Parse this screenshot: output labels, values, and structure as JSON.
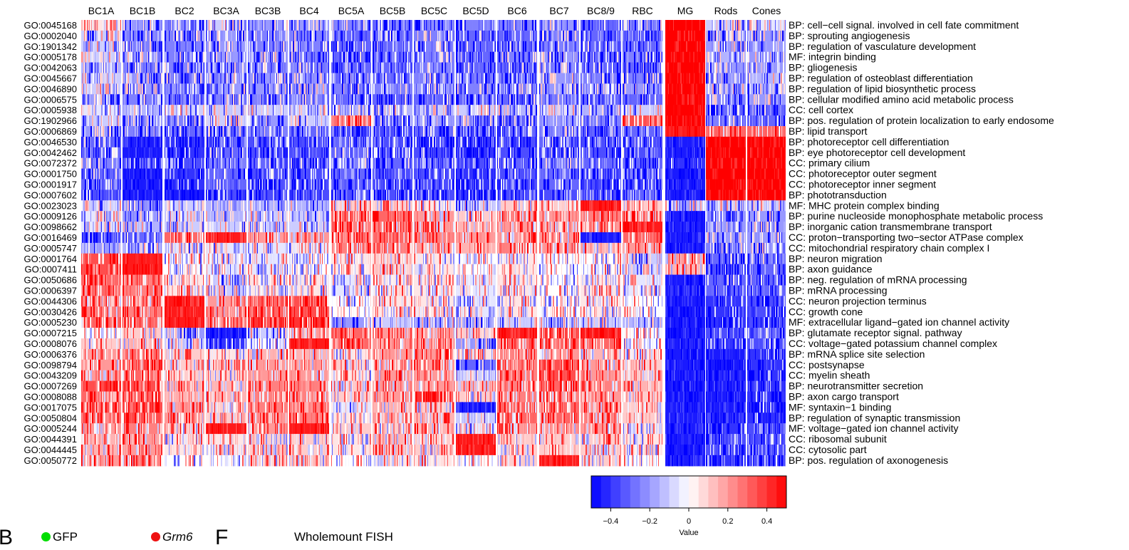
{
  "chart_data": {
    "type": "heatmap",
    "columns": [
      "BC1A",
      "BC1B",
      "BC2",
      "BC3A",
      "BC3B",
      "BC4",
      "BC5A",
      "BC5B",
      "BC5C",
      "BC5D",
      "BC6",
      "BC7",
      "BC8/9",
      "RBC",
      "MG",
      "Rods",
      "Cones"
    ],
    "rows": [
      {
        "id": "GO:0045168",
        "desc": "BP: cell−cell signal. involved in cell fate commitment"
      },
      {
        "id": "GO:0002040",
        "desc": "BP: sprouting angiogenesis"
      },
      {
        "id": "GO:1901342",
        "desc": "BP: regulation of vasculature development"
      },
      {
        "id": "GO:0005178",
        "desc": "MF: integrin binding"
      },
      {
        "id": "GO:0042063",
        "desc": "BP: gliogenesis"
      },
      {
        "id": "GO:0045667",
        "desc": "BP: regulation of osteoblast differentiation"
      },
      {
        "id": "GO:0046890",
        "desc": "BP: regulation of lipid biosynthetic process"
      },
      {
        "id": "GO:0006575",
        "desc": "BP: cellular modified amino acid metabolic process"
      },
      {
        "id": "GO:0005938",
        "desc": "CC: cell cortex"
      },
      {
        "id": "GO:1902966",
        "desc": "BP: pos. regulation of protein localization to early endosome"
      },
      {
        "id": "GO:0006869",
        "desc": "BP: lipid transport"
      },
      {
        "id": "GO:0046530",
        "desc": "BP: photoreceptor cell differentiation"
      },
      {
        "id": "GO:0042462",
        "desc": "BP: eye photoreceptor cell development"
      },
      {
        "id": "GO:0072372",
        "desc": "CC: primary cilium"
      },
      {
        "id": "GO:0001750",
        "desc": "CC: photoreceptor outer segment"
      },
      {
        "id": "GO:0001917",
        "desc": "CC: photoreceptor inner segment"
      },
      {
        "id": "GO:0007602",
        "desc": "BP: phototransduction"
      },
      {
        "id": "GO:0023023",
        "desc": "MF: MHC protein complex binding"
      },
      {
        "id": "GO:0009126",
        "desc": "BP: purine nucleoside monophosphate metabolic process"
      },
      {
        "id": "GO:0098662",
        "desc": "BP: inorganic cation transmembrane transport"
      },
      {
        "id": "GO:0016469",
        "desc": "CC: proton−transporting two−sector ATPase complex"
      },
      {
        "id": "GO:0005747",
        "desc": "CC: mitochondrial respiratory chain complex I"
      },
      {
        "id": "GO:0001764",
        "desc": "BP: neuron migration"
      },
      {
        "id": "GO:0007411",
        "desc": "BP: axon guidance"
      },
      {
        "id": "GO:0050686",
        "desc": "BP: neg. regulation of mRNA processing"
      },
      {
        "id": "GO:0006397",
        "desc": "BP: mRNA processing"
      },
      {
        "id": "GO:0044306",
        "desc": "CC: neuron projection terminus"
      },
      {
        "id": "GO:0030426",
        "desc": "CC: growth cone"
      },
      {
        "id": "GO:0005230",
        "desc": "MF: extracellular ligand−gated ion channel activity"
      },
      {
        "id": "GO:0007215",
        "desc": "BP: glutamate receptor signal. pathway"
      },
      {
        "id": "GO:0008076",
        "desc": "CC: voltage−gated potassium channel complex"
      },
      {
        "id": "GO:0006376",
        "desc": "BP: mRNA splice site selection"
      },
      {
        "id": "GO:0098794",
        "desc": "CC: postsynapse"
      },
      {
        "id": "GO:0043209",
        "desc": "CC: myelin sheath"
      },
      {
        "id": "GO:0007269",
        "desc": "BP: neurotransmitter secretion"
      },
      {
        "id": "GO:0008088",
        "desc": "BP: axon cargo transport"
      },
      {
        "id": "GO:0017075",
        "desc": "MF: syntaxin−1 binding"
      },
      {
        "id": "GO:0050804",
        "desc": "BP: regulation of synaptic transmission"
      },
      {
        "id": "GO:0005244",
        "desc": "MF: voltage−gated ion channel activity"
      },
      {
        "id": "GO:0044391",
        "desc": "CC: ribosomal subunit"
      },
      {
        "id": "GO:0044445",
        "desc": "CC: cytosolic part"
      },
      {
        "id": "GO:0050772",
        "desc": "BP: pos. regulation of axonogenesis"
      }
    ],
    "values": [
      [
        0.05,
        -0.2,
        -0.25,
        -0.1,
        -0.2,
        -0.2,
        -0.25,
        -0.3,
        -0.25,
        -0.25,
        -0.25,
        -0.2,
        -0.3,
        -0.25,
        0.5,
        -0.1,
        -0.05
      ],
      [
        -0.1,
        -0.25,
        -0.25,
        -0.2,
        -0.25,
        -0.25,
        -0.3,
        -0.3,
        -0.25,
        -0.3,
        -0.3,
        -0.25,
        -0.3,
        -0.3,
        0.5,
        -0.2,
        -0.2
      ],
      [
        -0.1,
        -0.25,
        -0.25,
        -0.2,
        -0.25,
        -0.25,
        -0.3,
        -0.3,
        -0.25,
        -0.3,
        -0.3,
        -0.25,
        -0.3,
        -0.3,
        0.5,
        -0.2,
        -0.2
      ],
      [
        -0.1,
        -0.2,
        -0.25,
        -0.2,
        -0.2,
        -0.25,
        -0.3,
        -0.3,
        -0.25,
        -0.3,
        -0.25,
        -0.2,
        -0.3,
        -0.25,
        0.5,
        -0.15,
        -0.2
      ],
      [
        -0.15,
        -0.25,
        -0.25,
        -0.2,
        -0.25,
        -0.25,
        -0.3,
        -0.3,
        -0.25,
        -0.3,
        -0.3,
        -0.25,
        -0.3,
        -0.3,
        0.5,
        -0.2,
        -0.2
      ],
      [
        -0.1,
        -0.2,
        -0.25,
        -0.2,
        -0.2,
        -0.2,
        -0.3,
        -0.3,
        -0.25,
        -0.25,
        -0.25,
        -0.2,
        -0.25,
        -0.25,
        0.5,
        -0.2,
        -0.15
      ],
      [
        -0.1,
        -0.2,
        -0.2,
        -0.2,
        -0.2,
        -0.2,
        -0.25,
        -0.25,
        -0.2,
        -0.25,
        -0.25,
        -0.2,
        -0.25,
        -0.2,
        0.5,
        -0.15,
        -0.15
      ],
      [
        -0.2,
        -0.25,
        -0.3,
        -0.25,
        -0.25,
        -0.25,
        -0.3,
        -0.3,
        -0.3,
        -0.3,
        -0.3,
        -0.25,
        -0.3,
        -0.3,
        0.5,
        -0.25,
        -0.2
      ],
      [
        -0.05,
        -0.15,
        -0.1,
        -0.1,
        -0.1,
        -0.1,
        -0.15,
        -0.15,
        -0.1,
        -0.1,
        -0.15,
        -0.1,
        -0.15,
        -0.1,
        0.5,
        -0.3,
        -0.3
      ],
      [
        -0.1,
        -0.2,
        -0.25,
        -0.1,
        -0.2,
        -0.1,
        0.3,
        -0.3,
        -0.2,
        -0.2,
        -0.3,
        -0.2,
        -0.25,
        0.35,
        0.5,
        -0.25,
        -0.3
      ],
      [
        -0.2,
        -0.25,
        -0.3,
        -0.25,
        -0.25,
        -0.3,
        -0.35,
        -0.35,
        -0.3,
        -0.3,
        -0.3,
        -0.25,
        -0.3,
        -0.3,
        0.45,
        0.3,
        0.3
      ],
      [
        -0.3,
        -0.45,
        -0.4,
        -0.3,
        -0.35,
        -0.35,
        -0.3,
        -0.35,
        -0.35,
        -0.4,
        -0.35,
        -0.3,
        -0.35,
        -0.35,
        -0.45,
        0.5,
        0.5
      ],
      [
        -0.3,
        -0.45,
        -0.4,
        -0.3,
        -0.35,
        -0.35,
        -0.3,
        -0.35,
        -0.35,
        -0.4,
        -0.35,
        -0.3,
        -0.35,
        -0.35,
        -0.45,
        0.5,
        0.5
      ],
      [
        -0.25,
        -0.4,
        -0.35,
        -0.25,
        -0.3,
        -0.3,
        -0.25,
        -0.3,
        -0.3,
        -0.35,
        -0.3,
        -0.25,
        -0.3,
        -0.3,
        -0.4,
        0.5,
        0.5
      ],
      [
        -0.3,
        -0.45,
        -0.4,
        -0.3,
        -0.35,
        -0.35,
        -0.3,
        -0.35,
        -0.35,
        -0.4,
        -0.35,
        -0.3,
        -0.35,
        -0.35,
        -0.45,
        0.5,
        0.5
      ],
      [
        -0.3,
        -0.45,
        -0.4,
        -0.3,
        -0.35,
        -0.35,
        -0.3,
        -0.35,
        -0.35,
        -0.4,
        -0.35,
        -0.3,
        -0.35,
        -0.35,
        -0.45,
        0.5,
        0.5
      ],
      [
        -0.35,
        -0.45,
        -0.45,
        -0.35,
        -0.35,
        -0.35,
        -0.35,
        -0.35,
        -0.35,
        -0.4,
        -0.35,
        -0.35,
        -0.35,
        -0.3,
        -0.45,
        0.5,
        0.5
      ],
      [
        -0.1,
        -0.2,
        -0.1,
        -0.15,
        -0.15,
        -0.15,
        0.1,
        0.1,
        0.05,
        -0.1,
        0.1,
        0.1,
        0.45,
        0.1,
        -0.1,
        -0.1,
        -0.1
      ],
      [
        -0.05,
        -0.2,
        -0.1,
        -0.15,
        -0.1,
        -0.1,
        0.3,
        0.3,
        0.2,
        0.1,
        0.25,
        0.2,
        0.25,
        0.2,
        -0.45,
        -0.2,
        -0.2
      ],
      [
        -0.05,
        -0.15,
        -0.1,
        -0.1,
        -0.1,
        -0.1,
        0.25,
        0.25,
        0.2,
        0.15,
        0.2,
        0.2,
        0.2,
        0.45,
        -0.45,
        -0.2,
        -0.2
      ],
      [
        -0.35,
        -0.3,
        0.3,
        0.45,
        0.2,
        0.2,
        0.3,
        0.3,
        0.25,
        0.2,
        0.2,
        0.2,
        -0.45,
        0.3,
        -0.45,
        -0.2,
        -0.2
      ],
      [
        -0.2,
        -0.15,
        -0.05,
        -0.05,
        -0.05,
        -0.05,
        0.25,
        0.25,
        0.2,
        0.15,
        0.25,
        0.2,
        0.15,
        0.2,
        -0.45,
        -0.25,
        -0.2
      ],
      [
        0.35,
        0.45,
        0.0,
        -0.05,
        -0.05,
        0.0,
        0.05,
        0.1,
        0.05,
        0.0,
        0.05,
        0.0,
        0.0,
        -0.1,
        0.2,
        -0.3,
        -0.25
      ],
      [
        0.35,
        0.45,
        0.0,
        -0.05,
        -0.05,
        0.0,
        0.05,
        0.1,
        0.05,
        0.0,
        0.05,
        0.0,
        0.0,
        -0.1,
        0.15,
        -0.35,
        -0.3
      ],
      [
        0.3,
        0.25,
        0.05,
        -0.1,
        0.05,
        0.05,
        -0.05,
        0.05,
        0.05,
        -0.05,
        0.05,
        0.0,
        0.05,
        -0.05,
        -0.45,
        -0.3,
        -0.3
      ],
      [
        0.3,
        0.25,
        0.05,
        -0.1,
        0.05,
        0.05,
        -0.05,
        0.05,
        0.05,
        -0.05,
        0.05,
        0.0,
        0.05,
        -0.05,
        -0.45,
        -0.3,
        -0.3
      ],
      [
        0.25,
        0.25,
        0.45,
        0.2,
        0.3,
        0.35,
        0.0,
        0.05,
        0.05,
        -0.05,
        0.05,
        0.0,
        0.05,
        0.0,
        -0.45,
        -0.4,
        -0.35
      ],
      [
        0.25,
        0.25,
        0.45,
        0.2,
        0.3,
        0.35,
        0.0,
        0.05,
        0.05,
        -0.05,
        0.05,
        0.0,
        0.05,
        0.0,
        -0.45,
        -0.4,
        -0.35
      ],
      [
        0.3,
        0.3,
        0.45,
        0.25,
        0.4,
        0.4,
        -0.2,
        -0.1,
        -0.15,
        -0.2,
        -0.1,
        -0.1,
        -0.1,
        -0.15,
        -0.45,
        -0.4,
        -0.35
      ],
      [
        0.0,
        0.1,
        -0.2,
        -0.45,
        -0.1,
        0.2,
        0.3,
        0.2,
        0.2,
        0.1,
        0.45,
        0.35,
        0.45,
        0.0,
        -0.45,
        -0.35,
        -0.3
      ],
      [
        0.1,
        0.15,
        -0.1,
        -0.4,
        0.0,
        0.45,
        0.3,
        0.2,
        0.2,
        -0.2,
        0.3,
        0.3,
        0.3,
        0.0,
        -0.45,
        -0.4,
        -0.35
      ],
      [
        0.2,
        0.3,
        0.1,
        0.05,
        0.15,
        0.15,
        0.05,
        0.2,
        0.2,
        0.05,
        0.25,
        0.2,
        0.15,
        0.05,
        -0.45,
        -0.45,
        -0.4
      ],
      [
        0.2,
        0.3,
        0.1,
        0.1,
        0.2,
        0.2,
        0.1,
        0.2,
        0.2,
        -0.3,
        0.25,
        0.35,
        0.2,
        0.1,
        -0.45,
        -0.45,
        -0.4
      ],
      [
        0.2,
        0.3,
        0.1,
        0.1,
        0.2,
        0.2,
        0.05,
        0.2,
        0.2,
        -0.1,
        0.25,
        0.35,
        0.2,
        0.1,
        -0.45,
        -0.45,
        -0.4
      ],
      [
        0.35,
        0.35,
        0.15,
        0.15,
        0.25,
        0.25,
        0.1,
        0.2,
        0.2,
        0.15,
        0.25,
        0.3,
        0.25,
        0.15,
        -0.45,
        -0.45,
        -0.4
      ],
      [
        0.3,
        0.3,
        0.15,
        0.15,
        0.25,
        0.25,
        0.1,
        0.2,
        0.4,
        0.1,
        0.25,
        0.25,
        0.2,
        0.1,
        -0.45,
        -0.45,
        -0.4
      ],
      [
        0.35,
        0.35,
        0.2,
        0.1,
        0.25,
        0.25,
        -0.05,
        0.15,
        0.1,
        -0.45,
        0.3,
        0.3,
        0.2,
        0.1,
        -0.45,
        -0.45,
        -0.4
      ],
      [
        0.3,
        0.35,
        0.2,
        0.1,
        0.2,
        0.25,
        0.05,
        0.2,
        0.15,
        -0.1,
        0.3,
        0.3,
        0.25,
        0.1,
        -0.45,
        -0.45,
        -0.4
      ],
      [
        0.2,
        0.25,
        0.15,
        0.45,
        0.2,
        0.45,
        0.1,
        0.1,
        0.15,
        -0.05,
        0.2,
        0.2,
        0.2,
        0.05,
        -0.45,
        -0.4,
        -0.35
      ],
      [
        0.15,
        0.2,
        0.05,
        0.05,
        0.1,
        0.1,
        0.05,
        0.15,
        0.1,
        0.45,
        0.1,
        0.1,
        0.1,
        0.05,
        -0.45,
        -0.35,
        -0.35
      ],
      [
        0.15,
        0.2,
        0.05,
        0.05,
        0.1,
        0.1,
        0.05,
        0.15,
        0.1,
        0.45,
        0.1,
        0.1,
        0.1,
        0.05,
        -0.45,
        -0.35,
        -0.35
      ],
      [
        0.2,
        0.25,
        0.0,
        0.0,
        0.1,
        0.1,
        0.0,
        0.05,
        0.05,
        0.0,
        0.1,
        0.45,
        0.1,
        0.0,
        -0.45,
        -0.4,
        -0.35
      ]
    ],
    "legend": {
      "title": "Value",
      "range": [
        -0.5,
        0.5
      ],
      "ticks": [
        -0.4,
        -0.2,
        0,
        0.2,
        0.4
      ],
      "tick_labels": [
        "−0.4",
        "−0.2",
        "0",
        "0.2",
        "0.4"
      ],
      "low_color": "#0000ff",
      "mid_color": "#ffffff",
      "high_color": "#ff0000"
    }
  },
  "panel_b": {
    "letter": "B",
    "gfp_label": "GFP",
    "gfp_color": "#00dd00",
    "grm6_label": "Grm6",
    "grm6_color": "#ee1111"
  },
  "panel_f": {
    "letter": "F",
    "title": "Wholemount FISH"
  }
}
